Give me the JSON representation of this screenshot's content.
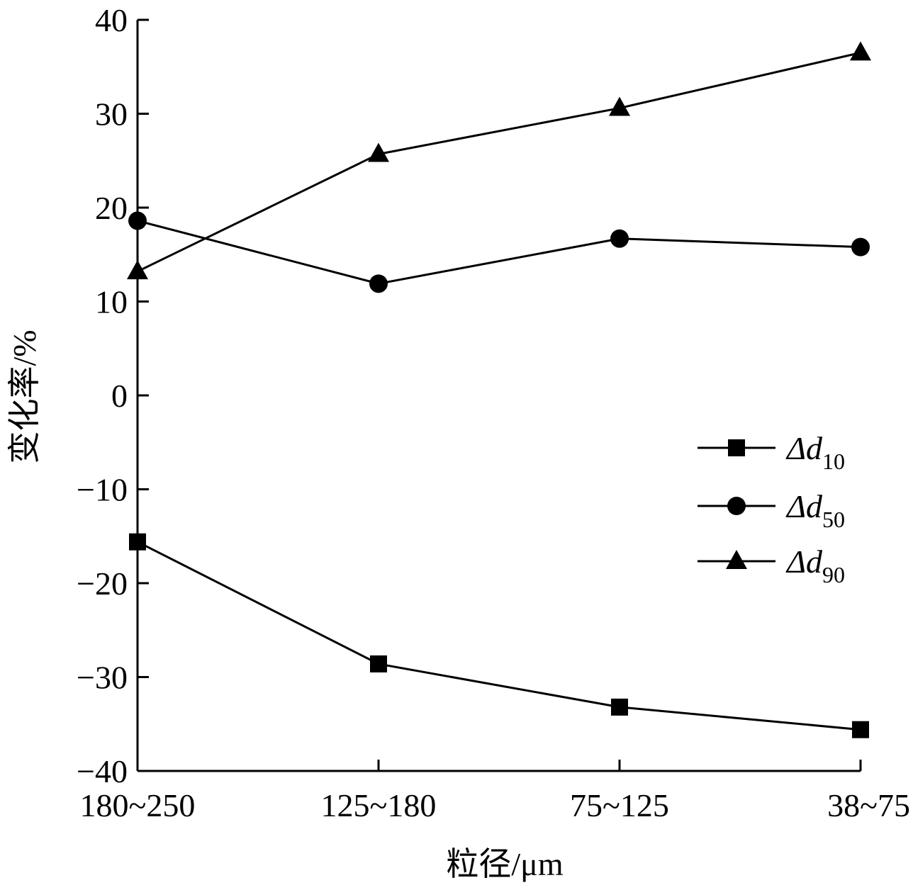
{
  "chart_data": {
    "type": "line",
    "title": "",
    "xlabel": "粒径/μm",
    "ylabel": "变化率/%",
    "categories": [
      "180~250",
      "125~180",
      "75~125",
      "38~75"
    ],
    "ylim": [
      -40,
      40
    ],
    "yticks": [
      40,
      30,
      20,
      10,
      0,
      -10,
      -20,
      -30,
      -40
    ],
    "ytick_labels": [
      "40",
      "30",
      "20",
      "10",
      "0",
      "−10",
      "−20",
      "−30",
      "−40"
    ],
    "grid": false,
    "legend_position": "right",
    "series": [
      {
        "name": "Δd10",
        "label_main": "Δd",
        "label_sub": "10",
        "marker": "square",
        "values": [
          -15.6,
          -28.6,
          -33.2,
          -35.6
        ]
      },
      {
        "name": "Δd50",
        "label_main": "Δd",
        "label_sub": "50",
        "marker": "circle",
        "values": [
          18.6,
          11.9,
          16.7,
          15.8
        ]
      },
      {
        "name": "Δd90",
        "label_main": "Δd",
        "label_sub": "90",
        "marker": "triangle",
        "values": [
          13.2,
          25.7,
          30.6,
          36.5
        ]
      }
    ]
  }
}
